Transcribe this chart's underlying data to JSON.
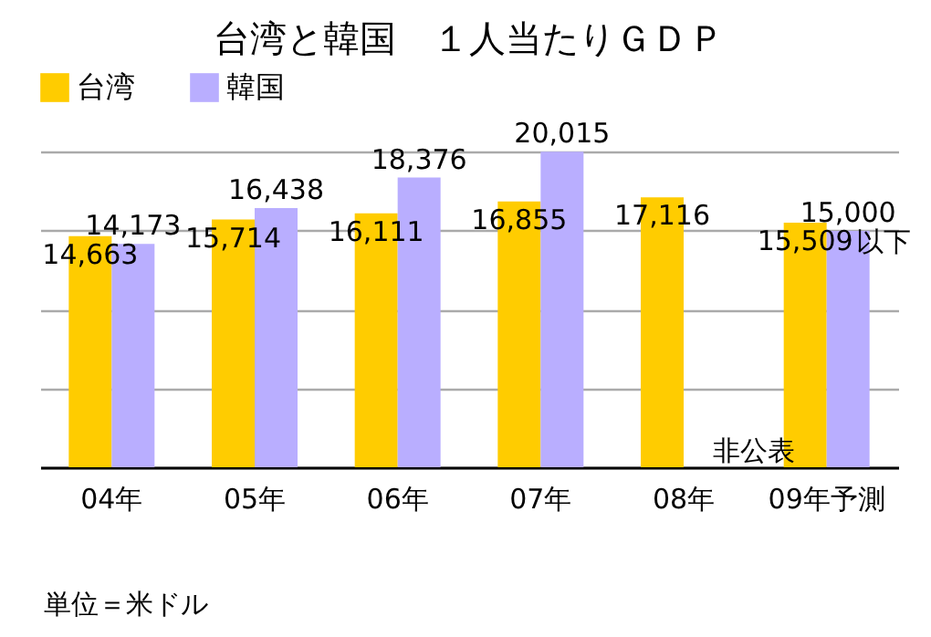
{
  "chart_data": {
    "type": "bar",
    "title": "台湾と韓国　１人当たりＧＤＰ",
    "categories": [
      "04年",
      "05年",
      "06年",
      "07年",
      "08年",
      "09年予測"
    ],
    "series": [
      {
        "name": "台湾",
        "color": "#ffcc00",
        "values": [
          14663,
          15714,
          16111,
          16855,
          17116,
          15509
        ],
        "value_labels": [
          "14,663",
          "15,714",
          "16,111",
          "16,855",
          "17,116",
          "15,509"
        ]
      },
      {
        "name": "韓国",
        "color": "#b9aeff",
        "values": [
          14173,
          16438,
          18376,
          20015,
          null,
          15000
        ],
        "value_labels": [
          "14,173",
          "16,438",
          "18,376",
          "20,015",
          null,
          "15,000"
        ]
      }
    ],
    "tick_labels": "x",
    "grid": "y",
    "legend": "top left",
    "annotations": [
      {
        "text": "非公表",
        "x": "08年",
        "y": 1850
      },
      {
        "text": "以下",
        "x": "09年予測",
        "y": 15100
      },
      "単位＝米ドル"
    ]
  }
}
